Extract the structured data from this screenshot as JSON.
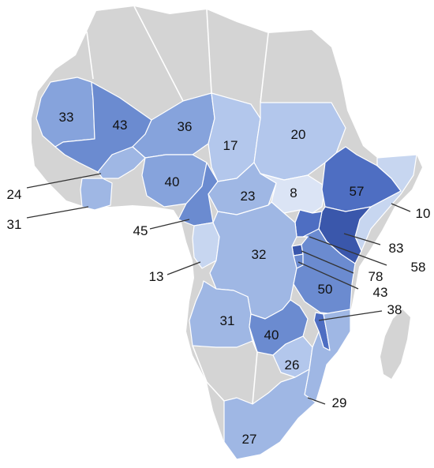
{
  "colors": {
    "no_data": "#d4d4d4",
    "scale": [
      "#dbe4f5",
      "#c7d6f0",
      "#b3c7ec",
      "#9fb7e4",
      "#86a3dc",
      "#6b8bd0",
      "#4e6ec2",
      "#3a57ab"
    ]
  },
  "map": {
    "regions": [
      {
        "id": "mauritania",
        "value": "33",
        "shade": 4
      },
      {
        "id": "mali",
        "value": "43",
        "shade": 5
      },
      {
        "id": "niger",
        "value": "36",
        "shade": 4
      },
      {
        "id": "chad",
        "value": "17",
        "shade": 2
      },
      {
        "id": "sudan",
        "value": "20",
        "shade": 2
      },
      {
        "id": "burkina-faso",
        "value": "24",
        "shade": 3
      },
      {
        "id": "cote-divoire",
        "value": "31",
        "shade": 3
      },
      {
        "id": "nigeria",
        "value": "40",
        "shade": 4
      },
      {
        "id": "cameroon",
        "value": "45",
        "shade": 5
      },
      {
        "id": "central-african-republic",
        "value": "23",
        "shade": 3
      },
      {
        "id": "south-sudan",
        "value": "8",
        "shade": 0
      },
      {
        "id": "ethiopia",
        "value": "57",
        "shade": 6
      },
      {
        "id": "somalia",
        "value": "10",
        "shade": 1
      },
      {
        "id": "kenya",
        "value": "83",
        "shade": 7
      },
      {
        "id": "uganda",
        "value": "58",
        "shade": 6
      },
      {
        "id": "rwanda",
        "value": "78",
        "shade": 7
      },
      {
        "id": "burundi",
        "value": "43",
        "shade": 5
      },
      {
        "id": "gabon",
        "value": "13",
        "shade": 1
      },
      {
        "id": "dr-congo",
        "value": "32",
        "shade": 3
      },
      {
        "id": "tanzania",
        "value": "50",
        "shade": 5
      },
      {
        "id": "angola",
        "value": "31",
        "shade": 3
      },
      {
        "id": "zambia",
        "value": "40",
        "shade": 5
      },
      {
        "id": "malawi",
        "value": "38",
        "shade": 6
      },
      {
        "id": "zimbabwe",
        "value": "26",
        "shade": 2
      },
      {
        "id": "mozambique",
        "value": "29",
        "shade": 3
      },
      {
        "id": "south-africa",
        "value": "27",
        "shade": 3
      }
    ]
  }
}
